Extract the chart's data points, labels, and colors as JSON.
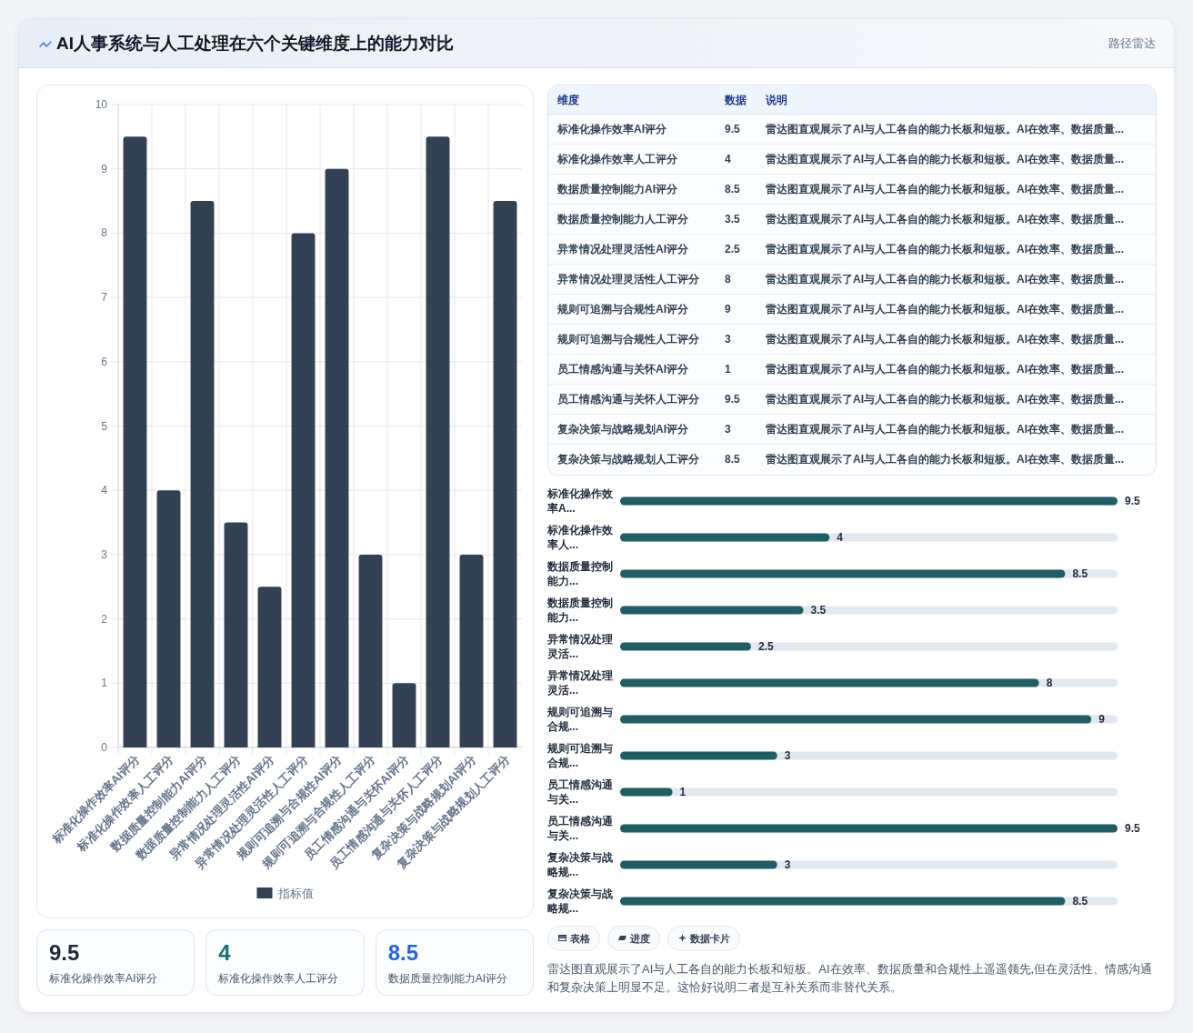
{
  "chart_data": [
    {
      "type": "other",
      "title": "AI人事系统与人工处理在六个关键维度上的能力对比",
      "subtitle": "路径雷达"
    },
    {
      "type": "bar",
      "categories": [
        "标准化操作效率AI评分",
        "标准化操作效率人工评分",
        "数据质量控制能力AI评分",
        "数据质量控制能力人工评分",
        "异常情况处理灵活性AI评分",
        "异常情况处理灵活性人工评分",
        "规则可追溯与合规性AI评分",
        "规则可追溯与合规性人工评分",
        "员工情感沟通与关怀AI评分",
        "员工情感沟通与关怀人工评分",
        "复杂决策与战略规划AI评分",
        "复杂决策与战略规划人工评分"
      ],
      "series": [
        {
          "name": "指标值",
          "color": "#334155",
          "values": [
            9.5,
            4,
            8.5,
            3.5,
            2.5,
            8,
            9,
            3,
            1,
            9.5,
            3,
            8.5
          ]
        }
      ],
      "ylim": [
        0,
        10
      ],
      "yticks": [
        0,
        1,
        2,
        3,
        4,
        5,
        6,
        7,
        8,
        9,
        10
      ],
      "grid": true,
      "legend": "bottom"
    },
    {
      "type": "other",
      "xlabel": "维度",
      "ylabel": "数据",
      "y2label": "说明",
      "categories": [
        "标准化操作效率AI评分",
        "标准化操作效率人工评分",
        "数据质量控制能力AI评分",
        "数据质量控制能力人工评分",
        "异常情况处理灵活性AI评分",
        "异常情况处理灵活性人工评分",
        "规则可追溯与合规性AI评分",
        "规则可追溯与合规性人工评分",
        "员工情感沟通与关怀AI评分",
        "员工情感沟通与关怀人工评分",
        "复杂决策与战略规划AI评分",
        "复杂决策与战略规划人工评分"
      ],
      "values": [
        9.5,
        4,
        8.5,
        3.5,
        2.5,
        8,
        9,
        3,
        1,
        9.5,
        3,
        8.5
      ],
      "data_labels": true,
      "annotations": [
        "雷达图直观展示了AI与人工各自的能力长板和短板。AI在效率、数据质量...",
        "雷达图直观展示了AI与人工各自的能力长板和短板。AI在效率、数据质量...",
        "雷达图直观展示了AI与人工各自的能力长板和短板。AI在效率、数据质量...",
        "雷达图直观展示了AI与人工各自的能力长板和短板。AI在效率、数据质量...",
        "雷达图直观展示了AI与人工各自的能力长板和短板。AI在效率、数据质量...",
        "雷达图直观展示了AI与人工各自的能力长板和短板。AI在效率、数据质量...",
        "雷达图直观展示了AI与人工各自的能力长板和短板。AI在效率、数据质量...",
        "雷达图直观展示了AI与人工各自的能力长板和短板。AI在效率、数据质量...",
        "雷达图直观展示了AI与人工各自的能力长板和短板。AI在效率、数据质量...",
        "雷达图直观展示了AI与人工各自的能力长板和短板。AI在效率、数据质量...",
        "雷达图直观展示了AI与人工各自的能力长板和短板。AI在效率、数据质量...",
        "雷达图直观展示了AI与人工各自的能力长板和短板。AI在效率、数据质量..."
      ]
    },
    {
      "type": "bar",
      "orientation": "horizontal",
      "categories": [
        "标准化操作效率A...",
        "标准化操作效率人...",
        "数据质量控制能力...",
        "数据质量控制能力...",
        "异常情况处理灵活...",
        "异常情况处理灵活...",
        "规则可追溯与合规...",
        "规则可追溯与合规...",
        "员工情感沟通与关...",
        "员工情感沟通与关...",
        "复杂决策与战略规...",
        "复杂决策与战略规..."
      ],
      "values": [
        9.5,
        4,
        8.5,
        3.5,
        2.5,
        8,
        9,
        3,
        1,
        9.5,
        3,
        8.5
      ],
      "color": "#1f5f64",
      "data_labels": true
    },
    {
      "type": "other",
      "categories": [
        "标准化操作效率AI评分",
        "标准化操作效率人工评分",
        "数据质量控制能力AI评分"
      ],
      "values": [
        9.5,
        4,
        8.5
      ],
      "data_labels": true
    },
    {
      "type": "other",
      "annotations": [
        "表格",
        "进度",
        "数据卡片",
        "雷达图直观展示了AI与人工各自的能力长板和短板。AI在效率、数据质量和合规性上遥遥领先,但在灵活性、情感沟通和复杂决策上明显不足。这恰好说明二者是互补关系而非替代关系。"
      ]
    }
  ]
}
